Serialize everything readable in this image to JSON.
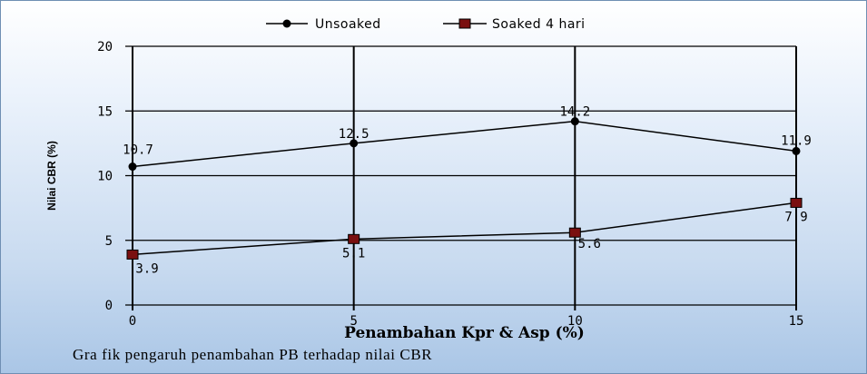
{
  "caption": "Gra fik pengaruh penambahan PB terhadap nilai CBR",
  "chart_data": {
    "type": "line",
    "x": [
      0,
      5,
      10,
      15
    ],
    "xlim": [
      0,
      15
    ],
    "ylim": [
      0,
      20
    ],
    "yticks": [
      0,
      5,
      10,
      15,
      20
    ],
    "xticks": [
      0,
      5,
      10,
      15
    ],
    "xlabel": "Penambahan Kpr & Asp (%)",
    "ylabel": "Nilai CBR (%)",
    "grid": true,
    "legend_position": "top-center",
    "series": [
      {
        "name": "Unsoaked",
        "values": [
          10.7,
          12.5,
          14.2,
          11.9
        ],
        "labels": [
          "10.7",
          "12.5",
          "14.2",
          "11.9"
        ],
        "marker": "circle",
        "color": "#000000",
        "marker_color": "#000000"
      },
      {
        "name": "Soaked 4 hari",
        "values": [
          3.9,
          5.1,
          5.6,
          7.9
        ],
        "labels": [
          "3.9",
          "5.1",
          "5.6",
          "7.9"
        ],
        "marker": "square",
        "color": "#000000",
        "marker_color": "#7a0f0f"
      }
    ]
  }
}
